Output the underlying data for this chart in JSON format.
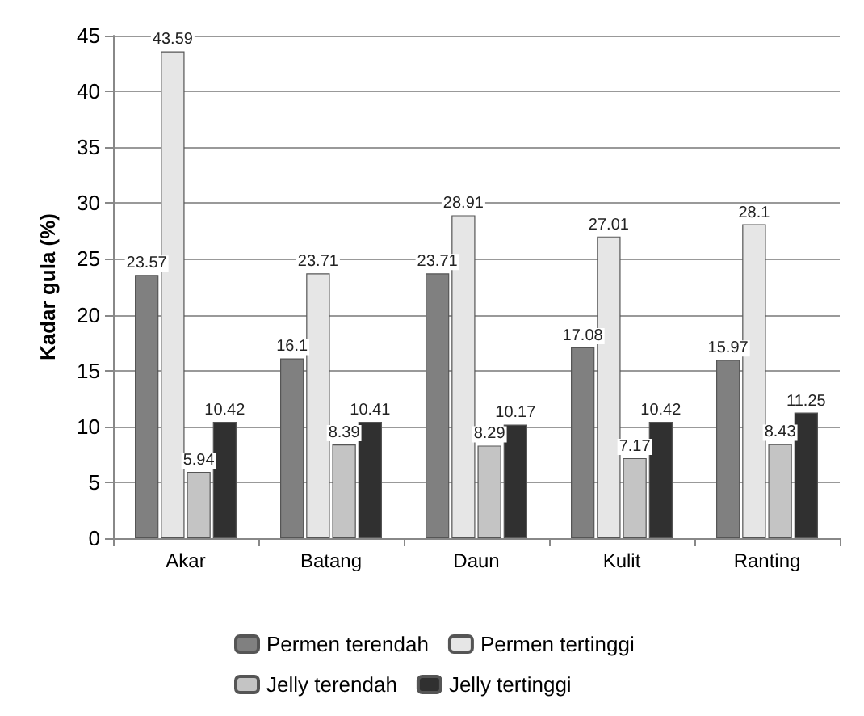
{
  "chart_data": {
    "type": "bar",
    "ylabel": "Kadar gula (%)",
    "categories": [
      "Akar",
      "Batang",
      "Daun",
      "Kulit",
      "Ranting"
    ],
    "series": [
      {
        "name": "Permen terendah",
        "color": "#808080",
        "values": [
          23.57,
          16.1,
          23.71,
          17.08,
          15.97
        ]
      },
      {
        "name": "Permen tertinggi",
        "color": "#e6e6e6",
        "values": [
          43.59,
          23.71,
          28.91,
          27.01,
          28.1
        ]
      },
      {
        "name": "Jelly terendah",
        "color": "#c4c4c4",
        "values": [
          5.94,
          8.39,
          8.29,
          7.17,
          8.43
        ]
      },
      {
        "name": "Jelly tertinggi",
        "color": "#303030",
        "values": [
          10.42,
          10.41,
          10.17,
          10.42,
          11.25
        ]
      }
    ],
    "ylim": [
      0,
      45
    ],
    "yticks": [
      0,
      5,
      10,
      15,
      20,
      25,
      30,
      35,
      40,
      45
    ],
    "grid": "y",
    "legend": "bottom",
    "data_labels": true
  }
}
